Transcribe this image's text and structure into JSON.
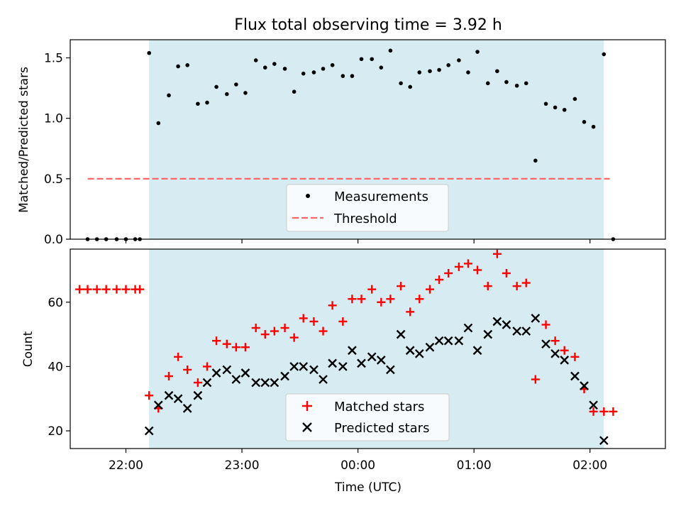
{
  "title": "Flux total observing time = 3.92 h",
  "xlabel": "Time (UTC)",
  "colors": {
    "shade": "#add8e6",
    "matched": "#ff0000",
    "predicted": "#000000",
    "threshold": "#ff6666",
    "measure": "#000000"
  },
  "chart_data": [
    {
      "type": "scatter",
      "ylabel": "Matched/Predicted stars",
      "ylim": [
        0,
        1.65
      ],
      "xlim_hours": [
        21.52,
        26.65
      ],
      "yticks": [
        "0.0",
        "0.5",
        "1.0",
        "1.5"
      ],
      "ytick_values": [
        0,
        0.5,
        1.0,
        1.5
      ],
      "shaded_span_hours": [
        22.2,
        26.12
      ],
      "legend": [
        "Measurements",
        "Threshold"
      ],
      "legend_placement": "lower center",
      "threshold": {
        "value": 0.5,
        "x_hours": [
          21.67,
          26.17
        ]
      },
      "series": [
        {
          "name": "Measurements",
          "marker": "dot",
          "x": [
            21.67,
            21.75,
            21.83,
            21.92,
            22.0,
            22.08,
            22.12,
            22.2,
            22.28,
            22.37,
            22.45,
            22.53,
            22.62,
            22.7,
            22.78,
            22.87,
            22.95,
            23.03,
            23.12,
            23.2,
            23.28,
            23.37,
            23.45,
            23.53,
            23.62,
            23.7,
            23.78,
            23.87,
            23.95,
            24.03,
            24.12,
            24.2,
            24.28,
            24.37,
            24.45,
            24.53,
            24.62,
            24.7,
            24.78,
            24.87,
            24.95,
            25.03,
            25.12,
            25.2,
            25.28,
            25.37,
            25.45,
            25.53,
            25.62,
            25.7,
            25.78,
            25.87,
            25.95,
            26.03,
            26.12,
            26.2
          ],
          "y": [
            0,
            0,
            0,
            0,
            0,
            0,
            0,
            1.54,
            0.96,
            1.19,
            1.43,
            1.44,
            1.12,
            1.13,
            1.26,
            1.2,
            1.28,
            1.21,
            1.48,
            1.42,
            1.45,
            1.41,
            1.22,
            1.37,
            1.38,
            1.41,
            1.44,
            1.35,
            1.35,
            1.49,
            1.49,
            1.42,
            1.56,
            1.29,
            1.26,
            1.38,
            1.39,
            1.4,
            1.44,
            1.48,
            1.38,
            1.55,
            1.29,
            1.39,
            1.3,
            1.27,
            1.29,
            0.65,
            1.12,
            1.09,
            1.07,
            1.16,
            0.97,
            0.93,
            1.53,
            0.0
          ]
        }
      ]
    },
    {
      "type": "scatter",
      "ylabel": "Count",
      "ylim": [
        14.5,
        76.5
      ],
      "xlim_hours": [
        21.52,
        26.65
      ],
      "yticks": [
        "20",
        "40",
        "60"
      ],
      "ytick_values": [
        20,
        40,
        60
      ],
      "xticks": [
        "22:00",
        "23:00",
        "00:00",
        "01:00",
        "02:00"
      ],
      "xtick_hours": [
        22,
        23,
        24,
        25,
        26
      ],
      "shaded_span_hours": [
        22.2,
        26.12
      ],
      "legend": [
        "Matched stars",
        "Predicted stars"
      ],
      "legend_placement": "lower center",
      "series": [
        {
          "name": "Matched stars",
          "marker": "plus",
          "x": [
            21.6,
            21.67,
            21.75,
            21.83,
            21.92,
            22.0,
            22.08,
            22.12,
            22.2,
            22.28,
            22.37,
            22.45,
            22.53,
            22.62,
            22.7,
            22.78,
            22.87,
            22.95,
            23.03,
            23.12,
            23.2,
            23.28,
            23.37,
            23.45,
            23.53,
            23.62,
            23.7,
            23.78,
            23.87,
            23.95,
            24.03,
            24.12,
            24.2,
            24.28,
            24.37,
            24.45,
            24.53,
            24.62,
            24.7,
            24.78,
            24.87,
            24.95,
            25.03,
            25.12,
            25.2,
            25.28,
            25.37,
            25.45,
            25.53,
            25.62,
            25.7,
            25.78,
            25.87,
            25.95,
            26.03,
            26.12,
            26.2
          ],
          "y": [
            64,
            64,
            64,
            64,
            64,
            64,
            64,
            64,
            31,
            27,
            37,
            43,
            39,
            35,
            40,
            48,
            47,
            46,
            46,
            52,
            50,
            51,
            52,
            49,
            55,
            54,
            51,
            59,
            54,
            61,
            61,
            64,
            60,
            61,
            65,
            57,
            61,
            64,
            67,
            69,
            71,
            72,
            70,
            65,
            75,
            69,
            65,
            66,
            36,
            53,
            48,
            45,
            43,
            33,
            26,
            26,
            26
          ]
        },
        {
          "name": "Predicted stars",
          "marker": "x",
          "x": [
            22.2,
            22.28,
            22.37,
            22.45,
            22.53,
            22.62,
            22.7,
            22.78,
            22.87,
            22.95,
            23.03,
            23.12,
            23.2,
            23.28,
            23.37,
            23.45,
            23.53,
            23.62,
            23.7,
            23.78,
            23.87,
            23.95,
            24.03,
            24.12,
            24.2,
            24.28,
            24.37,
            24.45,
            24.53,
            24.62,
            24.7,
            24.78,
            24.87,
            24.95,
            25.03,
            25.12,
            25.2,
            25.28,
            25.37,
            25.45,
            25.53,
            25.62,
            25.7,
            25.78,
            25.87,
            25.95,
            26.03,
            26.12
          ],
          "y": [
            20,
            28,
            31,
            30,
            27,
            31,
            35,
            38,
            39,
            36,
            38,
            35,
            35,
            35,
            37,
            40,
            40,
            39,
            36,
            41,
            40,
            45,
            41,
            43,
            42,
            39,
            50,
            45,
            44,
            46,
            48,
            48,
            48,
            52,
            45,
            50,
            54,
            53,
            51,
            51,
            55,
            47,
            44,
            42,
            37,
            34,
            28,
            17
          ]
        }
      ]
    }
  ]
}
